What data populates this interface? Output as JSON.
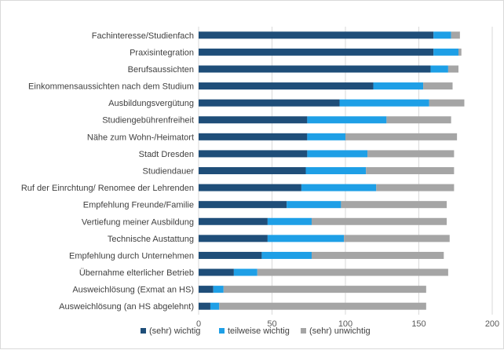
{
  "chart_data": {
    "type": "bar",
    "orientation": "horizontal",
    "stacked": true,
    "categories": [
      "Fachinteresse/Studienfach",
      "Praxisintegration",
      "Berufsaussichten",
      "Einkommensaussichten nach dem Studium",
      "Ausbildungsvergütung",
      "Studiengebührenfreiheit",
      "Nähe zum Wohn-/Heimatort",
      "Stadt Dresden",
      "Studiendauer",
      "Ruf der Einrchtung/ Renomee der Lehrenden",
      "Empfehlung Freunde/Familie",
      "Vertiefung meiner Ausbildung",
      "Technische Austattung",
      "Empfehlung durch Unternehmen",
      "Übernahme elterlicher Betrieb",
      "Ausweichlösung (Exmat an HS)",
      "Ausweichlösung (an HS abgelehnt)"
    ],
    "series": [
      {
        "name": "(sehr) wichtig",
        "color": "#1f4e79",
        "values": [
          160,
          160,
          158,
          119,
          96,
          74,
          74,
          74,
          73,
          70,
          60,
          47,
          47,
          43,
          24,
          10,
          8
        ]
      },
      {
        "name": "teilweise wichtig",
        "color": "#1e9fe6",
        "values": [
          12,
          17,
          12,
          34,
          61,
          54,
          26,
          41,
          41,
          51,
          37,
          30,
          52,
          34,
          16,
          7,
          6
        ]
      },
      {
        "name": "(sehr) unwichtig",
        "color": "#a5a5a5",
        "values": [
          6,
          2,
          7,
          20,
          24,
          44,
          76,
          59,
          60,
          53,
          72,
          92,
          72,
          90,
          130,
          138,
          141
        ]
      }
    ],
    "xlim": [
      0,
      200
    ],
    "xticks": [
      "0",
      "50",
      "100",
      "150",
      "200"
    ],
    "grid": "vertical",
    "legend_position": "bottom"
  }
}
